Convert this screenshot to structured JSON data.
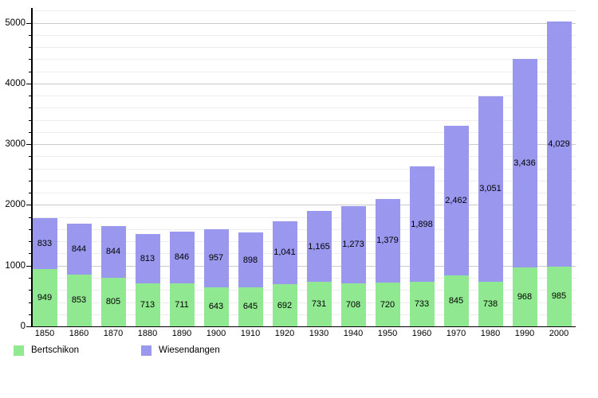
{
  "chart_data": {
    "type": "bar",
    "stacked": true,
    "title": "",
    "xlabel": "",
    "ylabel": "",
    "categories": [
      "1850",
      "1860",
      "1870",
      "1880",
      "1890",
      "1900",
      "1910",
      "1920",
      "1930",
      "1940",
      "1950",
      "1960",
      "1970",
      "1980",
      "1990",
      "2000"
    ],
    "series": [
      {
        "name": "Bertschikon",
        "color": "#90e890",
        "values": [
          949,
          853,
          805,
          713,
          711,
          643,
          645,
          692,
          731,
          708,
          720,
          733,
          845,
          738,
          968,
          985
        ]
      },
      {
        "name": "Wiesendangen",
        "color": "#9a98ee",
        "values": [
          833,
          844,
          844,
          813,
          846,
          957,
          898,
          1041,
          1165,
          1273,
          1379,
          1898,
          2462,
          3051,
          3436,
          4029
        ]
      }
    ],
    "ylim": [
      0,
      5200
    ],
    "y_major_ticks": [
      0,
      1000,
      2000,
      3000,
      4000,
      5000
    ],
    "y_minor_step": 200,
    "grid": true,
    "legend_position": "bottom-left",
    "value_labels": "inside-segments",
    "number_format": "thousands-comma"
  },
  "legend": {
    "items": [
      {
        "label": "Bertschikon",
        "color": "#90e890"
      },
      {
        "label": "Wiesendangen",
        "color": "#9a98ee"
      }
    ]
  },
  "colors": {
    "background": "#ffffff",
    "axis": "#000000",
    "grid_major": "#c9c9c9",
    "grid_minor": "#efecec",
    "text": "#000000"
  }
}
